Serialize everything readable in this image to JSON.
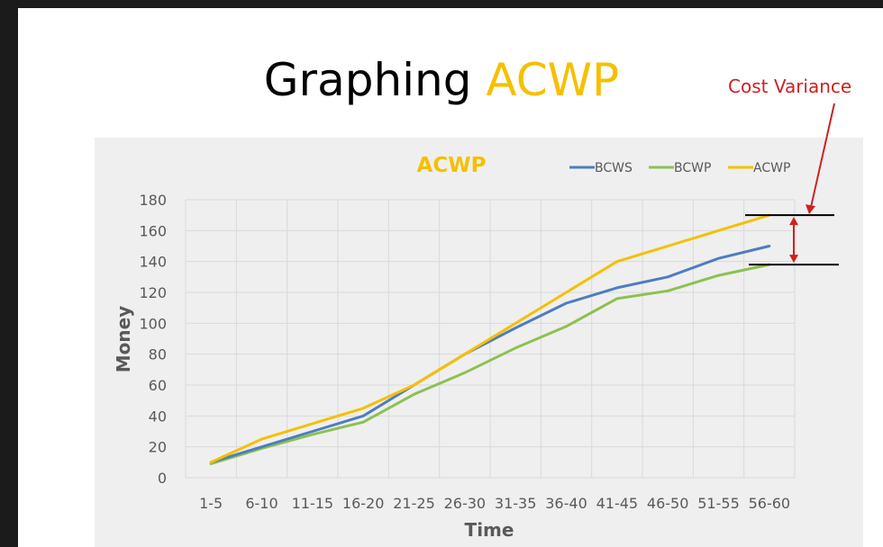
{
  "slide": {
    "title_prefix": "Graphing ",
    "title_accent": "ACWP",
    "annotation_label": "Cost Variance"
  },
  "colors": {
    "BCWS": "#4e7dbf",
    "BCWP": "#8cc152",
    "ACWP": "#f5c000",
    "annotation": "#d02020",
    "plot_background": "#efefef"
  },
  "chart_data": {
    "type": "line",
    "title": "ACWP",
    "xlabel": "Time",
    "ylabel": "Money",
    "ylim": [
      0,
      180
    ],
    "yticks": [
      0,
      20,
      40,
      60,
      80,
      100,
      120,
      140,
      160,
      180
    ],
    "grid": true,
    "legend_position": "top-right",
    "categories": [
      "1-5",
      "6-10",
      "11-15",
      "16-20",
      "21-25",
      "26-30",
      "31-35",
      "36-40",
      "41-45",
      "46-50",
      "51-55",
      "56-60"
    ],
    "series": [
      {
        "name": "BCWS",
        "values": [
          10,
          20,
          30,
          40,
          60,
          80,
          97,
          113,
          123,
          130,
          142,
          150
        ]
      },
      {
        "name": "BCWP",
        "values": [
          9,
          19,
          28,
          36,
          54,
          68,
          84,
          98,
          116,
          121,
          131,
          138
        ]
      },
      {
        "name": "ACWP",
        "values": [
          10,
          25,
          35,
          45,
          60,
          80,
          100,
          120,
          140,
          150,
          160,
          170
        ]
      }
    ]
  }
}
